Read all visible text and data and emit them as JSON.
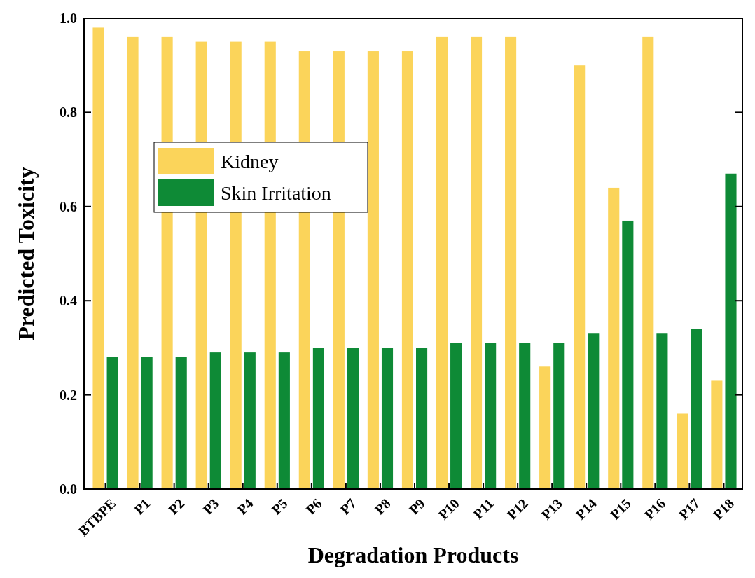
{
  "chart_data": {
    "type": "bar",
    "xlabel": "Degradation Products",
    "ylabel": "Predicted Toxicity",
    "categories": [
      "BTBPE",
      "P1",
      "P2",
      "P3",
      "P4",
      "P5",
      "P6",
      "P7",
      "P8",
      "P9",
      "P10",
      "P11",
      "P12",
      "P13",
      "P14",
      "P15",
      "P16",
      "P17",
      "P18"
    ],
    "series": [
      {
        "name": "Kidney",
        "color": "#fbd45a",
        "values": [
          0.98,
          0.96,
          0.96,
          0.95,
          0.95,
          0.95,
          0.93,
          0.93,
          0.93,
          0.93,
          0.96,
          0.96,
          0.96,
          0.26,
          0.9,
          0.64,
          0.96,
          0.16,
          0.23
        ]
      },
      {
        "name": "Skin Irritation",
        "color": "#0e8a36",
        "values": [
          0.28,
          0.28,
          0.28,
          0.29,
          0.29,
          0.29,
          0.3,
          0.3,
          0.3,
          0.3,
          0.31,
          0.31,
          0.31,
          0.31,
          0.33,
          0.57,
          0.33,
          0.34,
          0.67
        ]
      }
    ],
    "ylim": [
      0,
      1.0
    ],
    "yticks": [
      {
        "value": 0,
        "label": "0.0"
      },
      {
        "value": 0.2,
        "label": "0.2"
      },
      {
        "value": 0.4,
        "label": "0.4"
      },
      {
        "value": 0.6,
        "label": "0.6"
      },
      {
        "value": 0.8,
        "label": "0.8"
      },
      {
        "value": 1.0,
        "label": "1.0"
      }
    ],
    "grid": false,
    "legend": "left"
  }
}
